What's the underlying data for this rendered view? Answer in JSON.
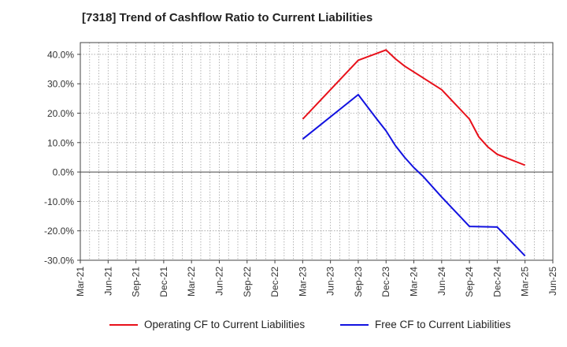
{
  "chart_data": {
    "type": "line",
    "title": "[7318]  Trend of Cashflow Ratio to Current Liabilities",
    "xlabel": "",
    "ylabel": "",
    "ylim": [
      -30,
      44
    ],
    "y_ticks": [
      40,
      30,
      20,
      10,
      0,
      -10,
      -20,
      -30
    ],
    "y_tick_labels": [
      "40.0%",
      "30.0%",
      "20.0%",
      "10.0%",
      "0.0%",
      "-10.0%",
      "-20.0%",
      "-30.0%"
    ],
    "x_tick_labels": [
      "Mar-21",
      "Jun-21",
      "Sep-21",
      "Dec-21",
      "Mar-22",
      "Jun-22",
      "Sep-22",
      "Dec-22",
      "Mar-23",
      "Jun-23",
      "Sep-23",
      "Dec-23",
      "Mar-24",
      "Jun-24",
      "Sep-24",
      "Dec-24",
      "Mar-25",
      "Jun-25"
    ],
    "grid": true,
    "legend_position": "bottom",
    "series": [
      {
        "name": "Operating CF to Current Liabilities",
        "color": "#e8101a",
        "points": [
          {
            "x": "Mar-23",
            "y": 18.0
          },
          {
            "x": "Sep-23",
            "y": 38.0
          },
          {
            "x": "Dec-23",
            "y": 41.5
          },
          {
            "x": "Jan-24",
            "y": 38.5
          },
          {
            "x": "Feb-24",
            "y": 36.0
          },
          {
            "x": "Jun-24",
            "y": 28.0
          },
          {
            "x": "Sep-24",
            "y": 18.0
          },
          {
            "x": "Oct-24",
            "y": 12.0
          },
          {
            "x": "Nov-24",
            "y": 8.5
          },
          {
            "x": "Dec-24",
            "y": 6.0
          },
          {
            "x": "Mar-25",
            "y": 2.3
          }
        ]
      },
      {
        "name": "Free CF to Current Liabilities",
        "color": "#1212e0",
        "points": [
          {
            "x": "Mar-23",
            "y": 11.2
          },
          {
            "x": "Sep-23",
            "y": 26.3
          },
          {
            "x": "Nov-23",
            "y": 18.0
          },
          {
            "x": "Dec-23",
            "y": 14.0
          },
          {
            "x": "Jan-24",
            "y": 9.0
          },
          {
            "x": "Feb-24",
            "y": 5.0
          },
          {
            "x": "Mar-24",
            "y": 1.5
          },
          {
            "x": "Apr-24",
            "y": -1.5
          },
          {
            "x": "Jun-24",
            "y": -8.5
          },
          {
            "x": "Sep-24",
            "y": -18.5
          },
          {
            "x": "Dec-24",
            "y": -18.7
          },
          {
            "x": "Mar-25",
            "y": -28.5
          }
        ]
      }
    ]
  }
}
